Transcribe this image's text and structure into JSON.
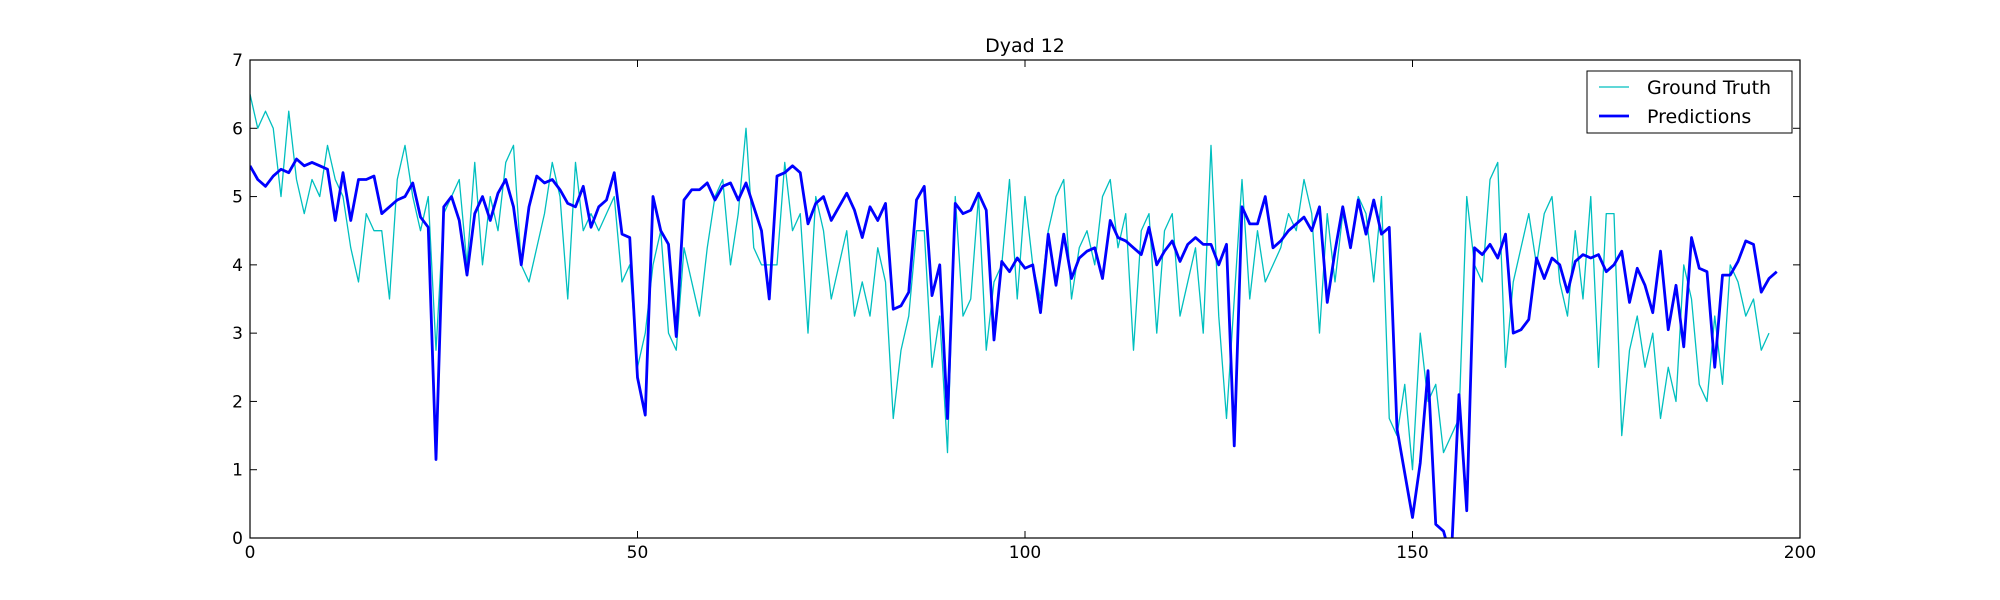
{
  "chart_data": {
    "type": "line",
    "title": "Dyad 12",
    "xlabel": "",
    "ylabel": "",
    "xlim": [
      0,
      200
    ],
    "ylim": [
      0,
      7
    ],
    "xticks": [
      0,
      50,
      100,
      150,
      200
    ],
    "yticks": [
      0,
      1,
      2,
      3,
      4,
      5,
      6,
      7
    ],
    "xtick_labels": [
      "0",
      "50",
      "100",
      "150",
      "200"
    ],
    "ytick_labels": [
      "0",
      "1",
      "2",
      "3",
      "4",
      "5",
      "6",
      "7"
    ],
    "grid": false,
    "legend_position": "top-right",
    "series": [
      {
        "name": "Ground Truth",
        "color": "#00bfbf",
        "values": [
          6.5,
          6.0,
          6.25,
          6.0,
          5.0,
          6.25,
          5.25,
          4.75,
          5.25,
          5.0,
          5.75,
          5.25,
          5.0,
          4.25,
          3.75,
          4.75,
          4.5,
          4.5,
          3.5,
          5.25,
          5.75,
          5.0,
          4.5,
          5.0,
          2.75,
          4.75,
          5.0,
          5.25,
          4.0,
          5.5,
          4.0,
          5.0,
          4.5,
          5.5,
          5.75,
          4.0,
          3.75,
          4.25,
          4.75,
          5.5,
          5.0,
          3.5,
          5.5,
          4.5,
          4.75,
          4.5,
          4.75,
          5.0,
          3.75,
          4.0,
          2.5,
          3.0,
          4.0,
          4.5,
          3.0,
          2.75,
          4.25,
          3.75,
          3.25,
          4.25,
          5.0,
          5.25,
          4.0,
          4.75,
          6.0,
          4.25,
          4.0,
          4.0,
          4.0,
          5.5,
          4.5,
          4.75,
          3.0,
          5.0,
          4.5,
          3.5,
          4.0,
          4.5,
          3.25,
          3.75,
          3.25,
          4.25,
          3.75,
          1.75,
          2.75,
          3.25,
          4.5,
          4.5,
          2.5,
          3.25,
          1.25,
          5.0,
          3.25,
          3.5,
          5.0,
          2.75,
          3.75,
          4.0,
          5.25,
          3.5,
          5.0,
          4.0,
          3.5,
          4.5,
          5.0,
          5.25,
          3.5,
          4.25,
          4.5,
          4.0,
          5.0,
          5.25,
          4.25,
          4.75,
          2.75,
          4.5,
          4.75,
          3.0,
          4.5,
          4.75,
          3.25,
          3.75,
          4.25,
          3.0,
          5.75,
          3.25,
          1.75,
          3.5,
          5.25,
          3.5,
          4.5,
          3.75,
          4.0,
          4.25,
          4.75,
          4.5,
          5.25,
          4.75,
          3.0,
          4.75,
          3.75,
          4.75,
          4.25,
          5.0,
          4.75,
          3.75,
          5.0,
          1.75,
          1.5,
          2.25,
          1.0,
          3.0,
          2.0,
          2.25,
          1.25,
          1.5,
          1.75,
          5.0,
          4.0,
          3.75,
          5.25,
          5.5,
          2.5,
          3.75,
          4.25,
          4.75,
          4.0,
          4.75,
          5.0,
          3.75,
          3.25,
          4.5,
          3.5,
          5.0,
          2.5,
          4.75,
          4.75,
          1.5,
          2.75,
          3.25,
          2.5,
          3.0,
          1.75,
          2.5,
          2.0,
          4.0,
          3.5,
          2.25,
          2.0,
          3.25,
          2.25,
          4.0,
          3.75,
          3.25,
          3.5,
          2.75,
          3.0
        ]
      },
      {
        "name": "Predictions",
        "color": "#0000ff",
        "values": [
          5.45,
          5.25,
          5.15,
          5.3,
          5.4,
          5.35,
          5.55,
          5.45,
          5.5,
          5.45,
          5.4,
          4.65,
          5.35,
          4.65,
          5.25,
          5.25,
          5.3,
          4.75,
          4.85,
          4.95,
          5.0,
          5.2,
          4.7,
          4.55,
          1.15,
          4.85,
          5.0,
          4.65,
          3.85,
          4.75,
          5.0,
          4.65,
          5.05,
          5.25,
          4.85,
          4.0,
          4.85,
          5.3,
          5.2,
          5.25,
          5.1,
          4.9,
          4.85,
          5.15,
          4.55,
          4.85,
          4.95,
          5.35,
          4.45,
          4.4,
          2.35,
          1.8,
          5.0,
          4.5,
          4.3,
          2.95,
          4.95,
          5.1,
          5.1,
          5.2,
          4.95,
          5.15,
          5.2,
          4.95,
          5.2,
          4.85,
          4.5,
          3.5,
          5.3,
          5.35,
          5.45,
          5.35,
          4.6,
          4.9,
          5.0,
          4.65,
          4.85,
          5.05,
          4.8,
          4.4,
          4.85,
          4.65,
          4.9,
          3.35,
          3.4,
          3.6,
          4.95,
          5.15,
          3.55,
          4.0,
          1.75,
          4.9,
          4.75,
          4.8,
          5.05,
          4.8,
          2.9,
          4.05,
          3.9,
          4.1,
          3.95,
          4.0,
          3.3,
          4.45,
          3.7,
          4.45,
          3.8,
          4.1,
          4.2,
          4.25,
          3.8,
          4.65,
          4.4,
          4.35,
          4.25,
          4.15,
          4.55,
          4.0,
          4.2,
          4.35,
          4.05,
          4.3,
          4.4,
          4.3,
          4.3,
          4.0,
          4.3,
          1.35,
          4.85,
          4.6,
          4.6,
          5.0,
          4.25,
          4.35,
          4.5,
          4.6,
          4.7,
          4.5,
          4.85,
          3.45,
          4.2,
          4.85,
          4.25,
          4.95,
          4.45,
          4.95,
          4.45,
          4.55,
          1.6,
          0.95,
          0.3,
          1.1,
          2.45,
          0.2,
          0.1,
          -0.3,
          2.1,
          0.4,
          4.25,
          4.15,
          4.3,
          4.1,
          4.45,
          3.0,
          3.05,
          3.2,
          4.1,
          3.8,
          4.1,
          4.0,
          3.6,
          4.05,
          4.15,
          4.1,
          4.15,
          3.9,
          4.0,
          4.2,
          3.45,
          3.95,
          3.7,
          3.3,
          4.2,
          3.05,
          3.7,
          2.8,
          4.4,
          3.95,
          3.9,
          2.5,
          3.85,
          3.85,
          4.05,
          4.35,
          4.3,
          3.6,
          3.8,
          3.9
        ]
      }
    ]
  }
}
